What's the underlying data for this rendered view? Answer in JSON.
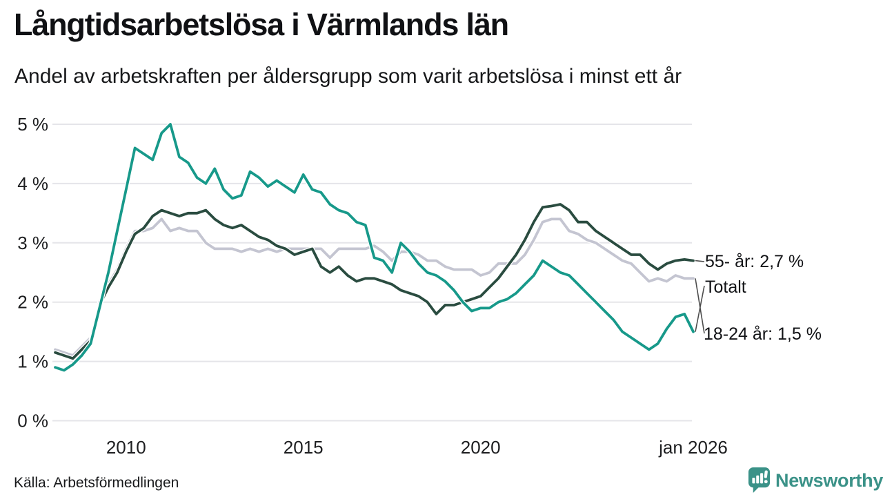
{
  "header": {
    "title": "Långtidsarbetslösa i Värmlands län",
    "subtitle": "Andel av arbetskraften per åldersgrupp som varit arbetslösa i minst ett år"
  },
  "annotations": {
    "age_55": "55- år: 2,7 %",
    "total": "Totalt",
    "age_18_24": "18-24 år: 1,5 %"
  },
  "footer": {
    "source": "Källa: Arbetsförmedlingen",
    "brand": "Newsworthy"
  },
  "colors": {
    "teal_series": "#17998a",
    "dark_green_series": "#2a4c40",
    "gray_series": "#c4c5d1",
    "gridline": "#e5e5e9",
    "connector": "#4d4d4d",
    "brand_teal": "#3b9288",
    "text": "#131417"
  },
  "chart_data": {
    "type": "line",
    "title": "Långtidsarbetslösa i Värmlands län",
    "subtitle": "Andel av arbetskraften per åldersgrupp som varit arbetslösa i minst ett år",
    "x_unit": "year (monthly data, sampled quarterly)",
    "x_range": [
      2008,
      2026
    ],
    "ylim": [
      0,
      5
    ],
    "grid": "horizontal",
    "legend_position": "right-end-labels",
    "yticks": {
      "values": [
        0,
        1,
        2,
        3,
        4,
        5
      ],
      "labels": [
        "0 %",
        "1 %",
        "2 %",
        "3 %",
        "4 %",
        "5 %"
      ]
    },
    "xticks": {
      "values": [
        2010,
        2015,
        2020,
        2026
      ],
      "labels": [
        "2010",
        "2015",
        "2020",
        "jan 2026"
      ]
    },
    "x": [
      2008,
      2008.25,
      2008.5,
      2008.75,
      2009,
      2009.25,
      2009.5,
      2009.75,
      2010,
      2010.25,
      2010.5,
      2010.75,
      2011,
      2011.25,
      2011.5,
      2011.75,
      2012,
      2012.25,
      2012.5,
      2012.75,
      2013,
      2013.25,
      2013.5,
      2013.75,
      2014,
      2014.25,
      2014.5,
      2014.75,
      2015,
      2015.25,
      2015.5,
      2015.75,
      2016,
      2016.25,
      2016.5,
      2016.75,
      2017,
      2017.25,
      2017.5,
      2017.75,
      2018,
      2018.25,
      2018.5,
      2018.75,
      2019,
      2019.25,
      2019.5,
      2019.75,
      2020,
      2020.25,
      2020.5,
      2020.75,
      2021,
      2021.25,
      2021.5,
      2021.75,
      2022,
      2022.25,
      2022.5,
      2022.75,
      2023,
      2023.25,
      2023.5,
      2023.75,
      2024,
      2024.25,
      2024.5,
      2024.75,
      2025,
      2025.25,
      2025.5,
      2025.75,
      2026
    ],
    "series": [
      {
        "name": "Totalt",
        "end_label": "Totalt",
        "end_value_pct": 2.4,
        "color": "#c4c5d1",
        "values": [
          1.2,
          1.15,
          1.1,
          1.25,
          1.4,
          2.0,
          2.3,
          2.55,
          2.9,
          3.2,
          3.2,
          3.25,
          3.4,
          3.2,
          3.25,
          3.2,
          3.2,
          3.0,
          2.9,
          2.9,
          2.9,
          2.85,
          2.9,
          2.85,
          2.9,
          2.85,
          2.9,
          2.9,
          2.9,
          2.9,
          2.9,
          2.75,
          2.9,
          2.9,
          2.9,
          2.9,
          2.95,
          2.85,
          2.7,
          2.85,
          2.85,
          2.8,
          2.7,
          2.7,
          2.6,
          2.55,
          2.55,
          2.55,
          2.45,
          2.5,
          2.65,
          2.65,
          2.65,
          2.8,
          3.05,
          3.35,
          3.4,
          3.4,
          3.2,
          3.15,
          3.05,
          3.0,
          2.9,
          2.8,
          2.7,
          2.65,
          2.5,
          2.35,
          2.4,
          2.35,
          2.45,
          2.4,
          2.4
        ]
      },
      {
        "name": "55- år",
        "end_label": "55- år: 2,7 %",
        "end_value_pct": 2.7,
        "color": "#2a4c40",
        "values": [
          1.15,
          1.1,
          1.05,
          1.2,
          1.35,
          1.95,
          2.25,
          2.5,
          2.85,
          3.15,
          3.25,
          3.45,
          3.55,
          3.5,
          3.45,
          3.5,
          3.5,
          3.55,
          3.4,
          3.3,
          3.25,
          3.3,
          3.2,
          3.1,
          3.05,
          2.95,
          2.9,
          2.8,
          2.85,
          2.9,
          2.6,
          2.5,
          2.6,
          2.45,
          2.35,
          2.4,
          2.4,
          2.35,
          2.3,
          2.2,
          2.15,
          2.1,
          2.0,
          1.8,
          1.95,
          1.95,
          2.0,
          2.05,
          2.1,
          2.25,
          2.4,
          2.6,
          2.8,
          3.05,
          3.35,
          3.6,
          3.62,
          3.65,
          3.55,
          3.35,
          3.35,
          3.2,
          3.1,
          3.0,
          2.9,
          2.8,
          2.8,
          2.65,
          2.55,
          2.65,
          2.7,
          2.72,
          2.7
        ]
      },
      {
        "name": "18-24 år",
        "end_label": "18-24 år: 1,5 %",
        "end_value_pct": 1.5,
        "color": "#17998a",
        "values": [
          0.9,
          0.85,
          0.95,
          1.1,
          1.3,
          1.9,
          2.5,
          3.2,
          3.9,
          4.6,
          4.5,
          4.4,
          4.85,
          5.0,
          4.45,
          4.35,
          4.1,
          4.0,
          4.25,
          3.9,
          3.75,
          3.8,
          4.2,
          4.1,
          3.95,
          4.05,
          3.95,
          3.85,
          4.15,
          3.9,
          3.85,
          3.65,
          3.55,
          3.5,
          3.35,
          3.3,
          2.75,
          2.7,
          2.5,
          3.0,
          2.85,
          2.65,
          2.5,
          2.45,
          2.35,
          2.2,
          2.0,
          1.85,
          1.9,
          1.9,
          2.0,
          2.05,
          2.15,
          2.3,
          2.45,
          2.7,
          2.6,
          2.5,
          2.45,
          2.3,
          2.15,
          2.0,
          1.85,
          1.7,
          1.5,
          1.4,
          1.3,
          1.2,
          1.3,
          1.55,
          1.75,
          1.8,
          1.5
        ]
      }
    ]
  }
}
